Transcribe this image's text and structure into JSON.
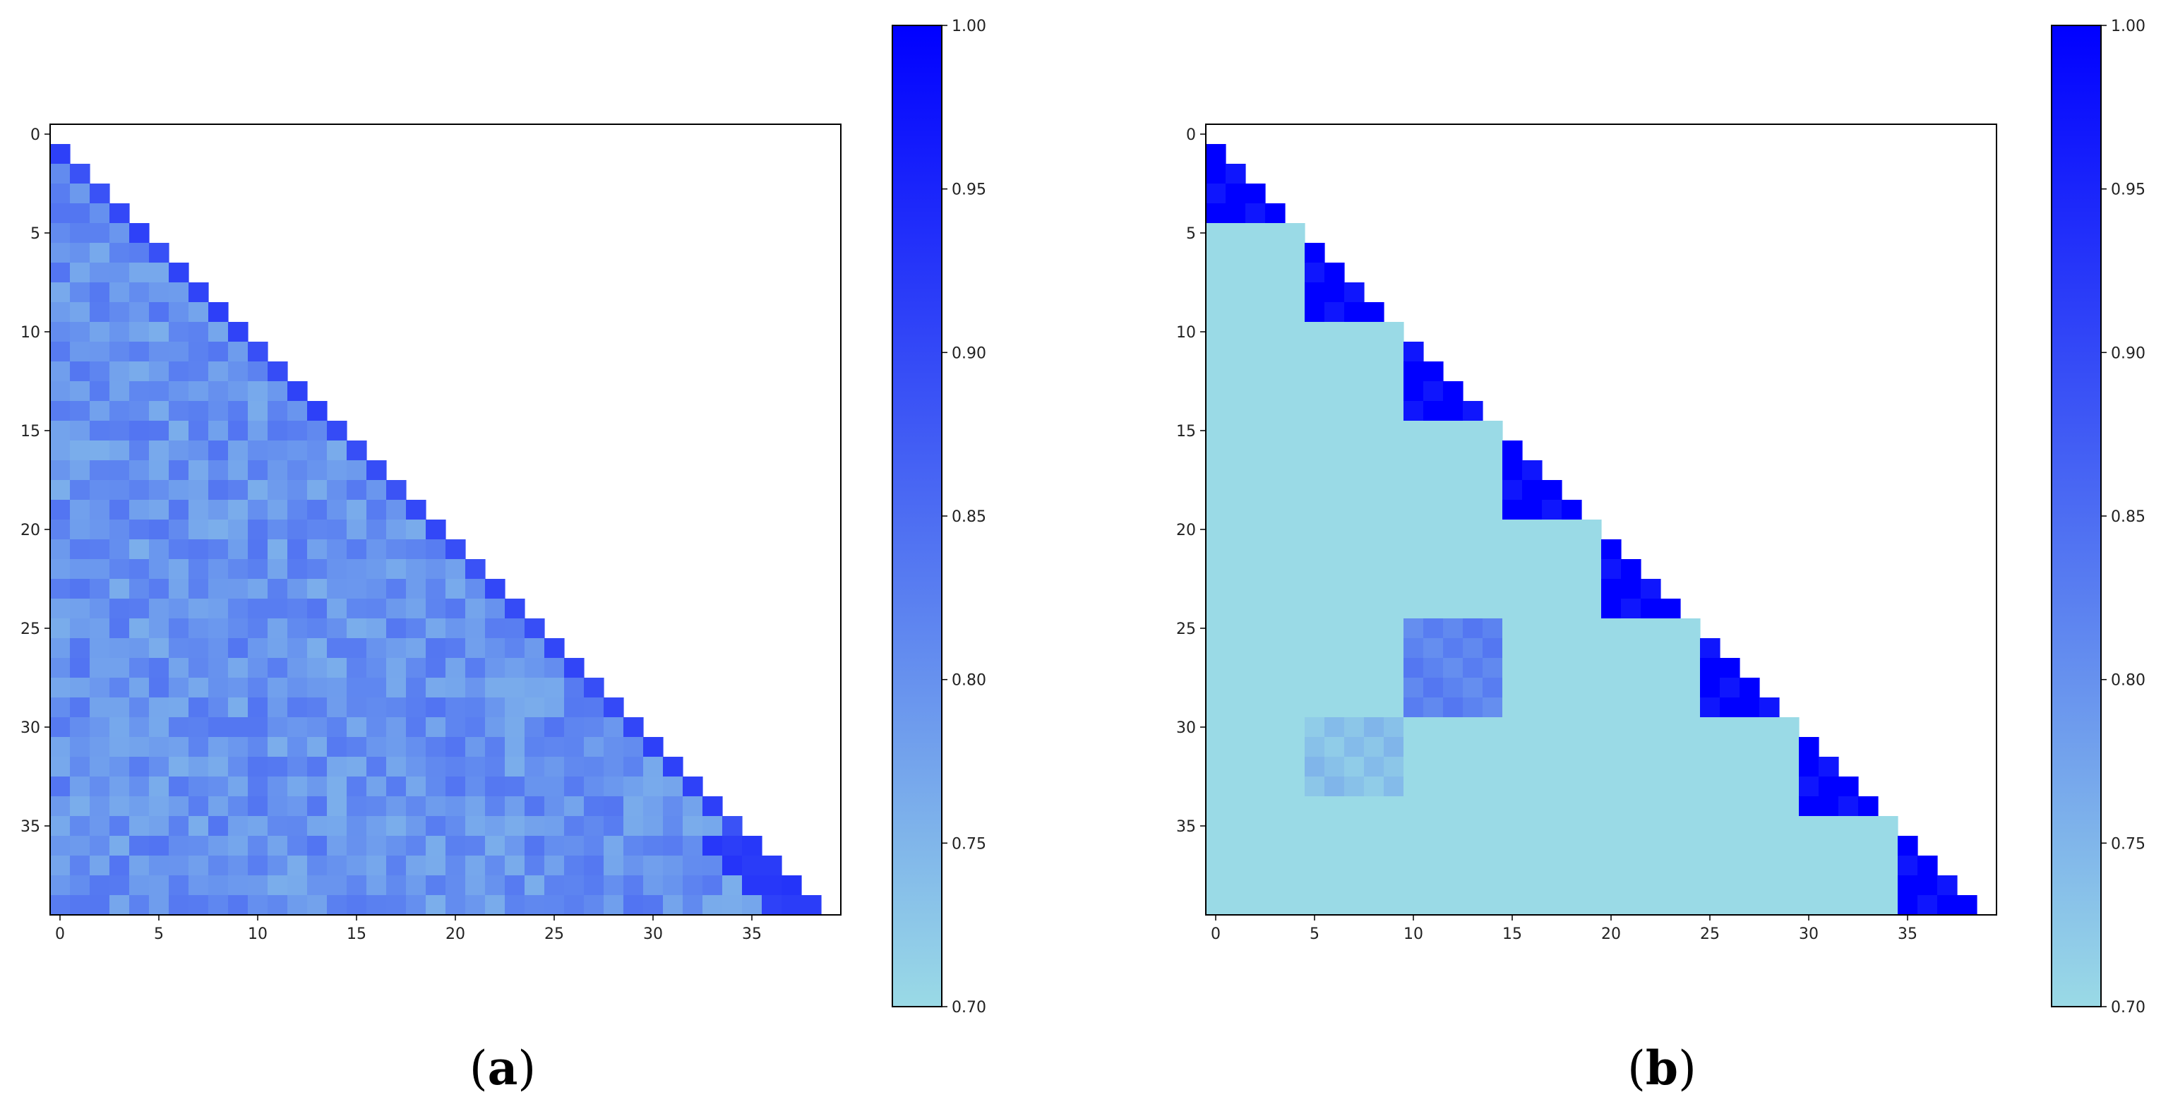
{
  "figure": {
    "panel_labels": [
      {
        "open": "(",
        "letter": "a",
        "close": ")"
      },
      {
        "open": "(",
        "letter": "b",
        "close": ")"
      }
    ]
  },
  "chart_data": [
    {
      "type": "heatmap",
      "panel": "a",
      "title": "",
      "xlabel": "",
      "ylabel": "",
      "n": 40,
      "mask": "lower-triangular (cells with row > column)",
      "xticks": [
        0,
        5,
        10,
        15,
        20,
        25,
        30,
        35
      ],
      "yticks": [
        0,
        5,
        10,
        15,
        20,
        25,
        30,
        35
      ],
      "colorbar": {
        "min": 0.7,
        "max": 1.0,
        "ticks": [
          "0.70",
          "0.75",
          "0.80",
          "0.85",
          "0.90",
          "0.95",
          "1.00"
        ],
        "cmap": [
          "#9adae6",
          "#0000ff"
        ]
      },
      "values_description": "near-diagonal cells about 0.87–0.93; remaining lower-triangle cells vary about 0.74–0.86 (mean ≈ 0.80); last rows (36–39) near diagonal ≈ 0.92",
      "base": 0.8,
      "noise": 0.04,
      "near_diag": 0.9,
      "seed": 7
    },
    {
      "type": "heatmap",
      "panel": "b",
      "title": "",
      "xlabel": "",
      "ylabel": "",
      "n": 40,
      "mask": "lower-triangular (cells with row > column)",
      "xticks": [
        0,
        5,
        10,
        15,
        20,
        25,
        30,
        35
      ],
      "yticks": [
        0,
        5,
        10,
        15,
        20,
        25,
        30,
        35
      ],
      "colorbar": {
        "min": 0.7,
        "max": 1.0,
        "ticks": [
          "0.70",
          "0.75",
          "0.80",
          "0.85",
          "0.90",
          "0.95",
          "1.00"
        ],
        "cmap": [
          "#9adae6",
          "#0000ff"
        ]
      },
      "default_value": 0.7,
      "diagonal_blocks": {
        "block_size": 5,
        "count": 8,
        "value": 1.0,
        "inner_variation": 0.97
      },
      "off_diagonal_blocks": [
        {
          "rows": [
            25,
            29
          ],
          "cols": [
            10,
            14
          ],
          "value": 0.82
        },
        {
          "rows": [
            30,
            33
          ],
          "cols": [
            5,
            9
          ],
          "value": 0.735
        }
      ]
    }
  ]
}
